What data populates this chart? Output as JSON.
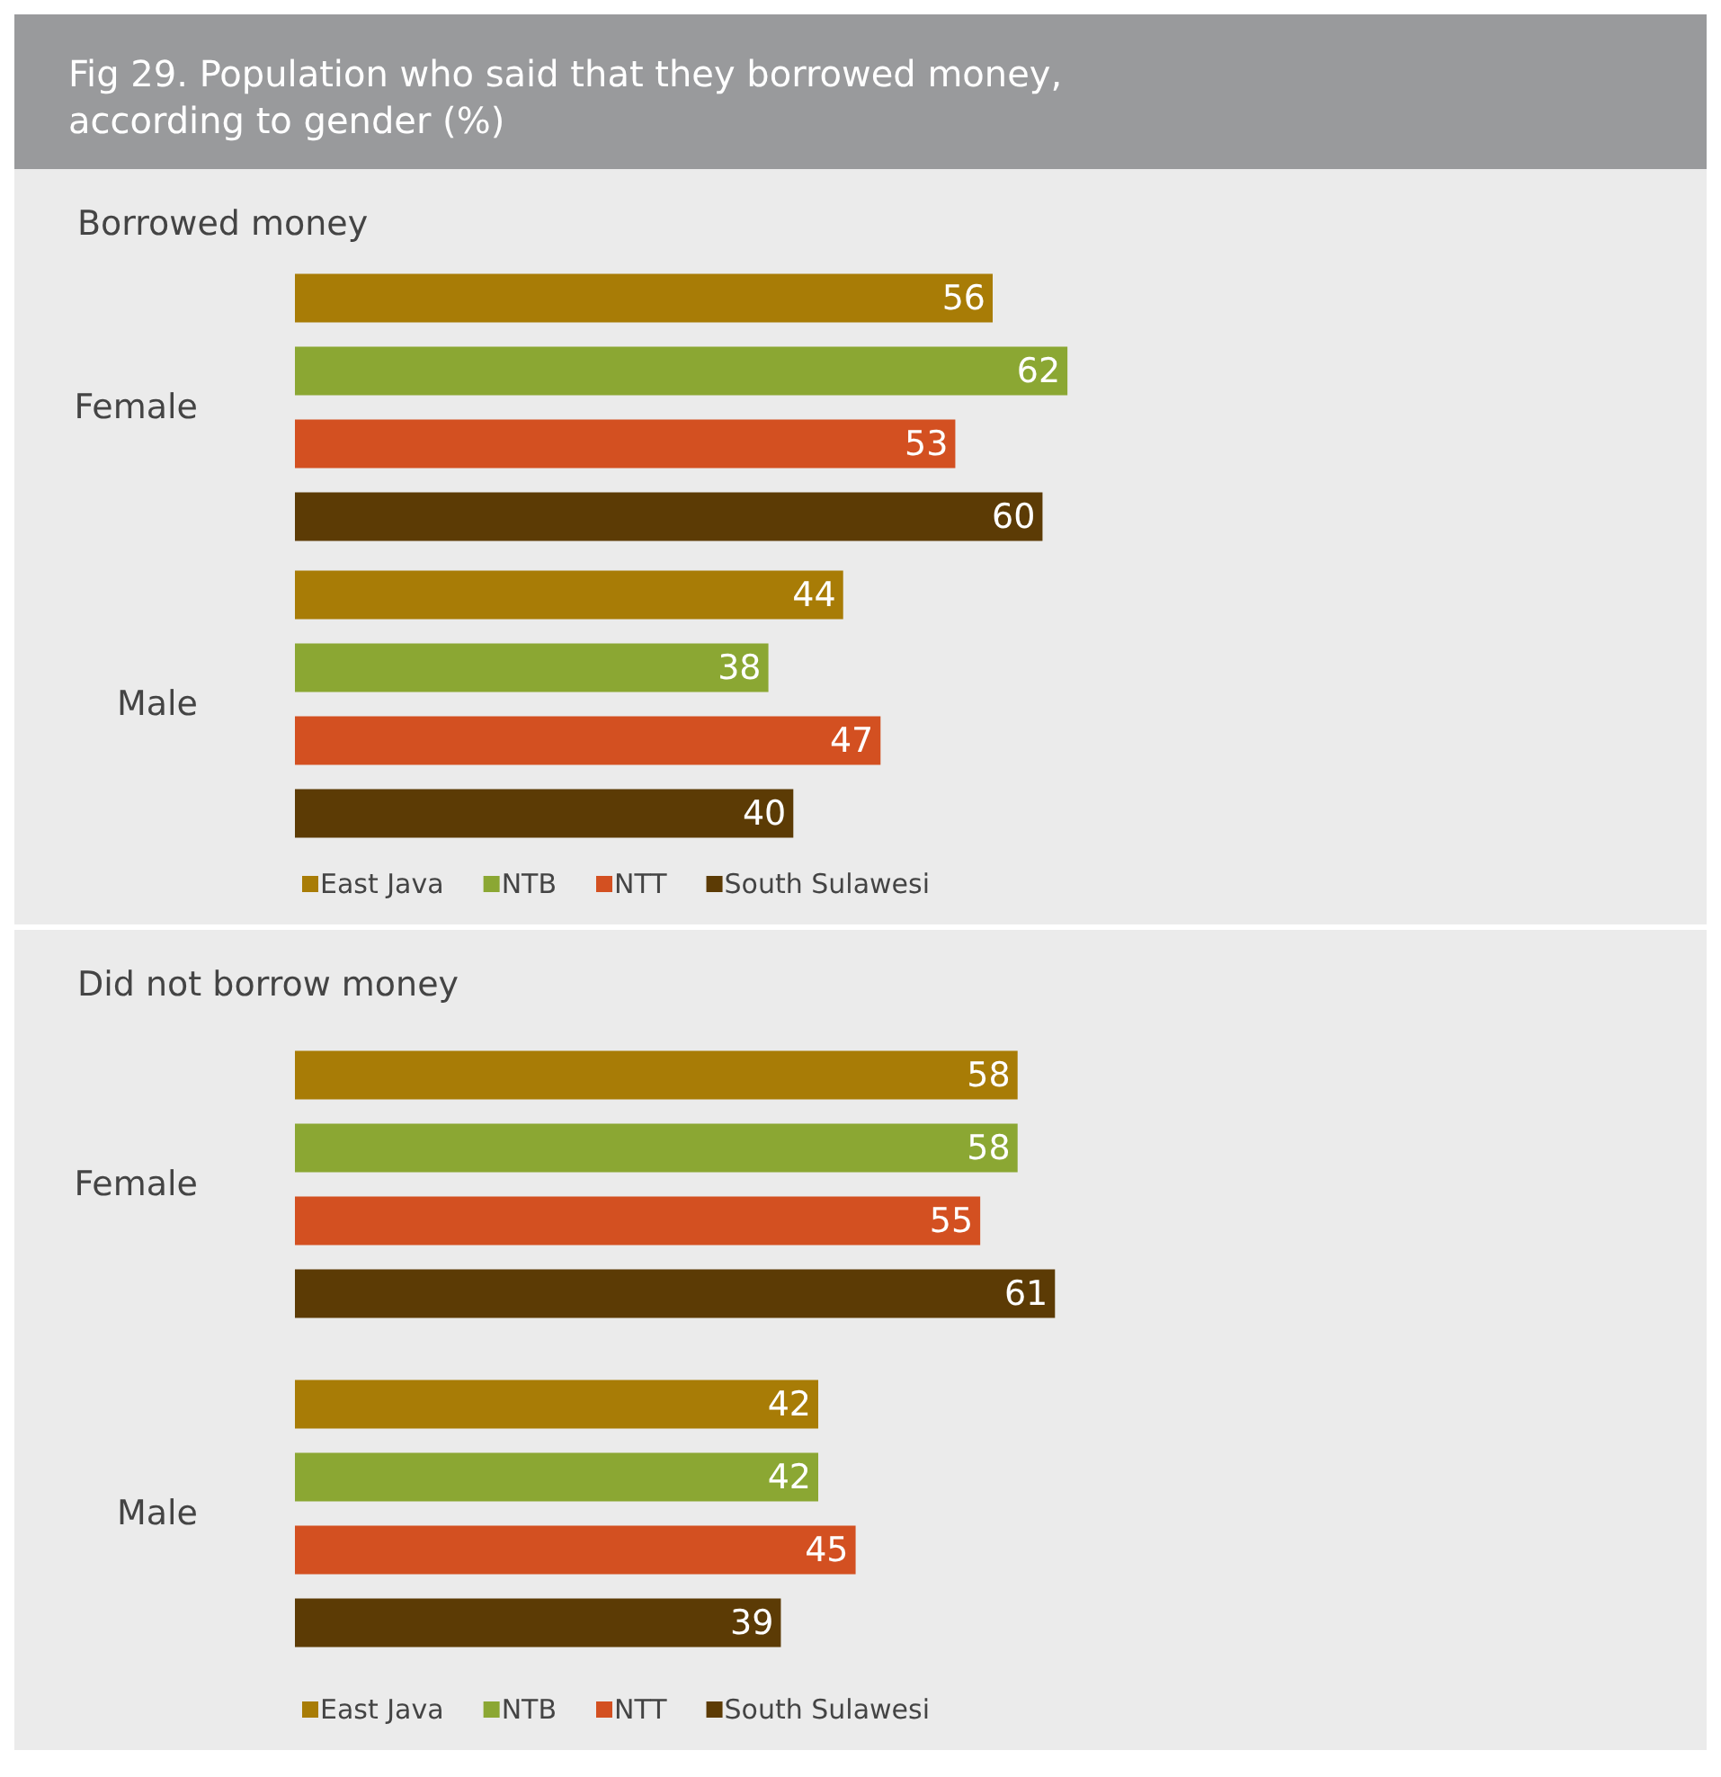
{
  "chart_data": [
    {
      "type": "bar",
      "orientation": "horizontal",
      "title": "Fig 29. Population who said that they borrowed money, according to gender (%)",
      "subtitle": "Borrowed money",
      "categories": [
        "Female",
        "Male"
      ],
      "data_labels": true,
      "legend": "bottom left",
      "tick_labels": "y",
      "series": [
        {
          "name": "East Java",
          "color": "#a87c06",
          "values": [
            56,
            44
          ]
        },
        {
          "name": "NTB",
          "color": "#8ba733",
          "values": [
            62,
            38
          ]
        },
        {
          "name": "NTT",
          "color": "#d35021",
          "values": [
            53,
            47
          ]
        },
        {
          "name": "South Sulawesi",
          "color": "#5c3b05",
          "values": [
            60,
            40
          ]
        }
      ]
    },
    {
      "type": "bar",
      "orientation": "horizontal",
      "subtitle": "Did not borrow money",
      "categories": [
        "Female",
        "Male"
      ],
      "data_labels": true,
      "legend": "bottom left",
      "tick_labels": "y",
      "series": [
        {
          "name": "East Java",
          "color": "#a87c06",
          "values": [
            58,
            42
          ]
        },
        {
          "name": "NTB",
          "color": "#8ba733",
          "values": [
            58,
            42
          ]
        },
        {
          "name": "NTT",
          "color": "#d35021",
          "values": [
            55,
            45
          ]
        },
        {
          "name": "South Sulawesi",
          "color": "#5c3b05",
          "values": [
            61,
            39
          ]
        }
      ]
    }
  ]
}
